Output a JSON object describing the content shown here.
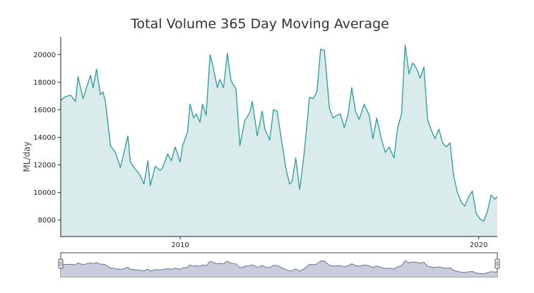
{
  "chart_data": {
    "type": "area",
    "title": "Total Volume 365 Day Moving Average",
    "xlabel": "",
    "ylabel": "ML/day",
    "x_tick_labels": [
      "2010",
      "2020"
    ],
    "y_tick_labels": [
      "8000",
      "10000",
      "12000",
      "14000",
      "16000",
      "18000",
      "20000"
    ],
    "ylim": [
      6800,
      21300
    ],
    "xlim": [
      "2006-01-01",
      "2020-08-15"
    ],
    "grid": false,
    "legend": "none",
    "range_slider": true,
    "colors": {
      "line": "#2a9a9a",
      "fill": "#d9ebeb",
      "slider_line": "#6a7490",
      "slider_fill": "#c8ccdb"
    },
    "series": [
      {
        "x": [
          "2006-01-01",
          "2006-03-01",
          "2006-05-01",
          "2006-07-01",
          "2006-08-01",
          "2006-10-01",
          "2006-11-01",
          "2007-01-01",
          "2007-02-01",
          "2007-03-15",
          "2007-05-01",
          "2007-06-01",
          "2007-07-01",
          "2007-09-01",
          "2007-11-01",
          "2008-01-01",
          "2008-03-01",
          "2008-04-01",
          "2008-05-01",
          "2008-07-01",
          "2008-08-01",
          "2008-09-01",
          "2008-10-15",
          "2008-12-01",
          "2009-01-01",
          "2009-03-01",
          "2009-05-01",
          "2009-06-01",
          "2009-08-01",
          "2009-09-15",
          "2009-11-01",
          "2010-01-01",
          "2010-02-01",
          "2010-04-01",
          "2010-05-01",
          "2010-06-15",
          "2010-07-15",
          "2010-09-01",
          "2010-10-01",
          "2010-11-15",
          "2011-01-01",
          "2011-02-01",
          "2011-04-01",
          "2011-05-01",
          "2011-06-15",
          "2011-08-01",
          "2011-09-15",
          "2011-11-15",
          "2012-01-01",
          "2012-03-01",
          "2012-05-01",
          "2012-06-01",
          "2012-08-01",
          "2012-10-01",
          "2012-11-01",
          "2013-01-01",
          "2013-02-15",
          "2013-04-01",
          "2013-06-01",
          "2013-07-15",
          "2013-09-01",
          "2013-10-01",
          "2013-11-15",
          "2014-01-01",
          "2014-03-01",
          "2014-05-01",
          "2014-06-15",
          "2014-08-01",
          "2014-09-15",
          "2014-11-01",
          "2015-01-01",
          "2015-02-15",
          "2015-04-01",
          "2015-05-15",
          "2015-07-01",
          "2015-08-15",
          "2015-10-01",
          "2015-11-15",
          "2016-01-01",
          "2016-03-01",
          "2016-05-01",
          "2016-06-15",
          "2016-08-01",
          "2016-10-01",
          "2016-11-15",
          "2017-01-01",
          "2017-03-01",
          "2017-04-15",
          "2017-06-01",
          "2017-07-15",
          "2017-09-01",
          "2017-10-15",
          "2017-12-01",
          "2018-01-15",
          "2018-03-01",
          "2018-04-15",
          "2018-06-01",
          "2018-07-15",
          "2018-09-01",
          "2018-10-15",
          "2018-12-01",
          "2019-01-15",
          "2019-03-01",
          "2019-04-15",
          "2019-06-01",
          "2019-07-15",
          "2019-09-01",
          "2019-10-15",
          "2019-12-01",
          "2020-01-15",
          "2020-03-01",
          "2020-04-15",
          "2020-06-01",
          "2020-07-15",
          "2020-08-15"
        ],
        "y": [
          16700,
          16950,
          17050,
          16600,
          18400,
          16800,
          17400,
          18500,
          17600,
          18950,
          17100,
          17300,
          16600,
          13400,
          12900,
          11800,
          13300,
          14100,
          12200,
          11700,
          11500,
          11200,
          10600,
          12300,
          10500,
          11900,
          11600,
          11800,
          12800,
          12300,
          13300,
          12200,
          13400,
          14400,
          16400,
          15400,
          15700,
          15100,
          16400,
          15600,
          20000,
          19300,
          17600,
          18200,
          17600,
          20100,
          18100,
          17500,
          13400,
          15200,
          15800,
          16600,
          14100,
          15900,
          14600,
          13800,
          16000,
          15900,
          13500,
          11800,
          10600,
          10800,
          12500,
          10200,
          13000,
          16900,
          16800,
          17300,
          20400,
          20300,
          16100,
          15400,
          15600,
          15700,
          14700,
          15600,
          17600,
          15900,
          15300,
          16400,
          15600,
          13900,
          15400,
          13800,
          12900,
          13300,
          12500,
          14700,
          15700,
          20700,
          18600,
          19400,
          19000,
          18300,
          19100,
          15300,
          14500,
          13900,
          14600,
          13600,
          13300,
          13600,
          11200,
          10000,
          9300,
          9000,
          9700,
          10100,
          8500,
          8100,
          7900,
          8600,
          9800,
          9500,
          9700
        ]
      }
    ]
  }
}
